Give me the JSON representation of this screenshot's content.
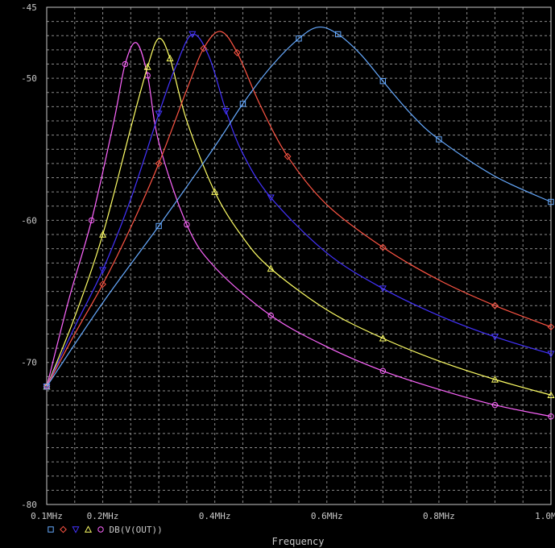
{
  "chart_data": {
    "type": "line",
    "title": "",
    "xlabel": "Frequency",
    "ylabel": "",
    "x_scale": "linear",
    "xlim": [
      100000,
      1000000
    ],
    "ylim": [
      -80,
      -45
    ],
    "grid": true,
    "background": "#000000",
    "x_tick_labels": [
      "0.1MHz",
      "0.2MHz",
      "0.4MHz",
      "0.6MHz",
      "0.8MHz",
      "1.0MHz"
    ],
    "x_tick_values": [
      100000,
      200000,
      400000,
      600000,
      800000,
      1000000
    ],
    "y_tick_labels": [
      "-45",
      "-50",
      "-60",
      "-70",
      "-80"
    ],
    "y_tick_values": [
      -45,
      -50,
      -60,
      -70,
      -80
    ],
    "legend": {
      "placement": "bottom-left",
      "label": "DB(V(OUT))"
    },
    "series": [
      {
        "color": "#ff66ff",
        "marker": "circle",
        "x": [
          100000,
          140000,
          180000,
          220000,
          240000,
          260000,
          280000,
          300000,
          350000,
          400000,
          500000,
          600000,
          700000,
          800000,
          900000,
          1000000
        ],
        "y": [
          -71.7,
          -65.5,
          -60.0,
          -53.0,
          -49.0,
          -47.5,
          -49.8,
          -54.5,
          -60.3,
          -63.3,
          -66.7,
          -68.9,
          -70.6,
          -71.9,
          -73.0,
          -73.8
        ]
      },
      {
        "color": "#ffff66",
        "marker": "triangle",
        "x": [
          100000,
          150000,
          200000,
          250000,
          280000,
          300000,
          320000,
          350000,
          400000,
          450000,
          500000,
          600000,
          700000,
          800000,
          900000,
          1000000
        ],
        "y": [
          -71.7,
          -66.8,
          -61.0,
          -53.5,
          -49.2,
          -47.2,
          -48.6,
          -53.0,
          -58.0,
          -61.2,
          -63.4,
          -66.3,
          -68.3,
          -69.9,
          -71.2,
          -72.3
        ]
      },
      {
        "color": "#4433ff",
        "marker": "triangle-down",
        "x": [
          100000,
          150000,
          200000,
          250000,
          300000,
          330000,
          360000,
          390000,
          420000,
          450000,
          500000,
          600000,
          700000,
          800000,
          900000,
          1000000
        ],
        "y": [
          -71.7,
          -67.5,
          -63.5,
          -58.5,
          -52.5,
          -49.2,
          -46.9,
          -48.5,
          -52.3,
          -55.3,
          -58.4,
          -62.3,
          -64.8,
          -66.7,
          -68.2,
          -69.4
        ]
      },
      {
        "color": "#ff5544",
        "marker": "diamond",
        "x": [
          100000,
          150000,
          200000,
          250000,
          300000,
          350000,
          380000,
          410000,
          440000,
          480000,
          530000,
          600000,
          700000,
          800000,
          900000,
          1000000
        ],
        "y": [
          -71.7,
          -68.0,
          -64.5,
          -60.5,
          -56.0,
          -50.8,
          -47.9,
          -46.7,
          -48.2,
          -51.8,
          -55.5,
          -58.9,
          -61.9,
          -64.2,
          -66.0,
          -67.5
        ]
      },
      {
        "color": "#66aaff",
        "marker": "square",
        "x": [
          100000,
          200000,
          300000,
          400000,
          450000,
          500000,
          550000,
          585000,
          620000,
          660000,
          700000,
          750000,
          800000,
          900000,
          1000000
        ],
        "y": [
          -71.7,
          -65.8,
          -60.4,
          -54.8,
          -51.8,
          -49.2,
          -47.2,
          -46.4,
          -46.9,
          -48.3,
          -50.2,
          -52.5,
          -54.3,
          -56.9,
          -58.7
        ]
      }
    ]
  }
}
